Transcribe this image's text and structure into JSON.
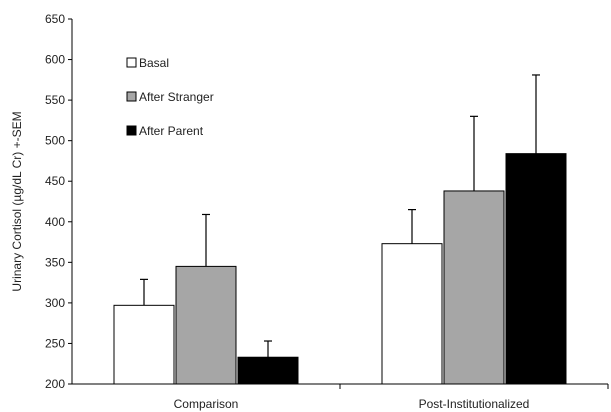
{
  "chart_data": {
    "type": "bar",
    "title": "",
    "xlabel": "",
    "ylabel": "Urinary Cortisol (µg/dL Cr) +-SEM",
    "ylim": [
      200,
      650
    ],
    "yticks": [
      200,
      250,
      300,
      350,
      400,
      450,
      500,
      550,
      600,
      650
    ],
    "grid": false,
    "legend_position": "top-left",
    "categories": [
      "Comparison",
      "Post-Institutionalized"
    ],
    "series": [
      {
        "name": "Basal",
        "color": "#ffffff",
        "values": [
          297,
          373
        ],
        "error": [
          32,
          42
        ]
      },
      {
        "name": "After Stranger",
        "color": "#a6a6a6",
        "values": [
          345,
          438
        ],
        "error": [
          64,
          92
        ]
      },
      {
        "name": "After Parent",
        "color": "#000000",
        "values": [
          233,
          484
        ],
        "error": [
          20,
          97
        ]
      }
    ]
  }
}
